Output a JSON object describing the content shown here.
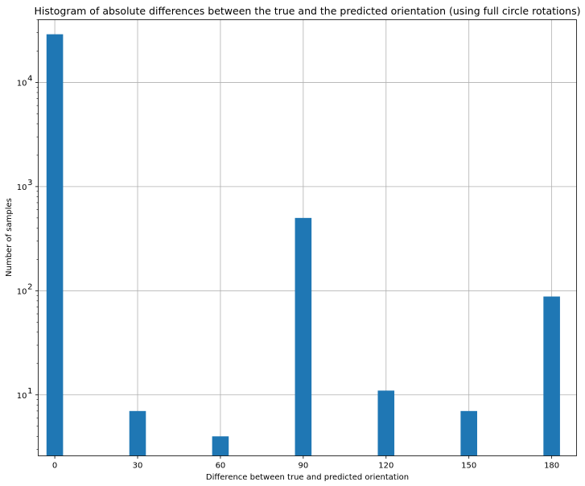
{
  "chart_data": {
    "type": "bar",
    "title": "Histogram of absolute differences between the true and the predicted orientation (using full circle rotations)",
    "xlabel": "Difference between true and predicted orientation",
    "ylabel": "Number of samples",
    "yscale": "log",
    "grid": true,
    "bar_color": "#1f77b4",
    "grid_color": "#b0b0b0",
    "x_ticks": [
      0,
      30,
      60,
      90,
      120,
      150,
      180
    ],
    "x_tick_labels": [
      "0",
      "30",
      "60",
      "90",
      "120",
      "150",
      "180"
    ],
    "y_ticks": [
      10,
      100,
      1000,
      10000
    ],
    "y_tick_labels": [
      {
        "base": "10",
        "exp": "1"
      },
      {
        "base": "10",
        "exp": "2"
      },
      {
        "base": "10",
        "exp": "3"
      },
      {
        "base": "10",
        "exp": "4"
      }
    ],
    "xlim": [
      -6,
      189
    ],
    "ylim": [
      2.6,
      40000
    ],
    "bins": [
      {
        "x": 0,
        "count": 29000
      },
      {
        "x": 30,
        "count": 7
      },
      {
        "x": 60,
        "count": 4
      },
      {
        "x": 90,
        "count": 500
      },
      {
        "x": 120,
        "count": 11
      },
      {
        "x": 150,
        "count": 7
      },
      {
        "x": 180,
        "count": 88
      }
    ],
    "bar_width": 6
  }
}
